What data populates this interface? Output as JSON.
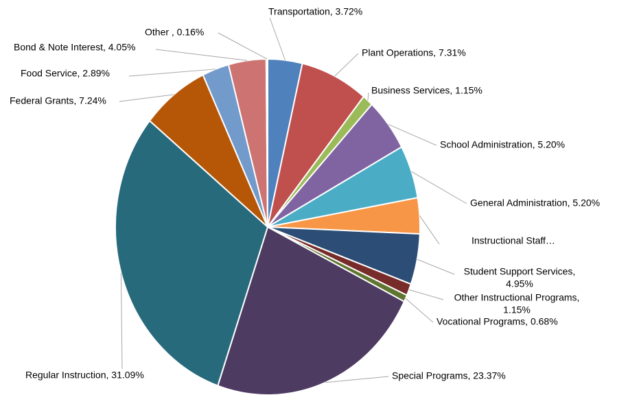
{
  "chart_data": {
    "type": "pie",
    "labels": [
      [
        "Transportation, 3.72%"
      ],
      [
        "Plant Operations, 7.31%"
      ],
      [
        "Business Services, 1.15%"
      ],
      [
        "School Administration, 5.20%"
      ],
      [
        "General Administration, 5.20%"
      ],
      [
        "Instructional Staff…"
      ],
      [
        "Student Support Services,",
        "4.95%"
      ],
      [
        "Other Instructional Programs,",
        "1.15%"
      ],
      [
        "Vocational Programs, 0.68%"
      ],
      [
        "Special Programs, 23.37%"
      ],
      [
        "Regular Instruction, 31.09%"
      ],
      [
        "Federal Grants, 7.24%"
      ],
      [
        "Food Service, 2.89%"
      ],
      [
        "Bond & Note Interest, 4.05%"
      ],
      [
        "Other   , 0.16%"
      ]
    ],
    "values": [
      3.72,
      7.31,
      1.15,
      5.2,
      5.2,
      3.5,
      4.95,
      1.15,
      0.68,
      23.37,
      31.09,
      7.24,
      2.89,
      4.05,
      0.16
    ],
    "colors": [
      "#4f81bd",
      "#c0504d",
      "#9bbb59",
      "#8064a2",
      "#4bacc6",
      "#f79646",
      "#2c4d75",
      "#772c2a",
      "#5f7530",
      "#4d3b62",
      "#276a7c",
      "#b65708",
      "#729aca",
      "#cd7371",
      "#b9cd96"
    ]
  }
}
